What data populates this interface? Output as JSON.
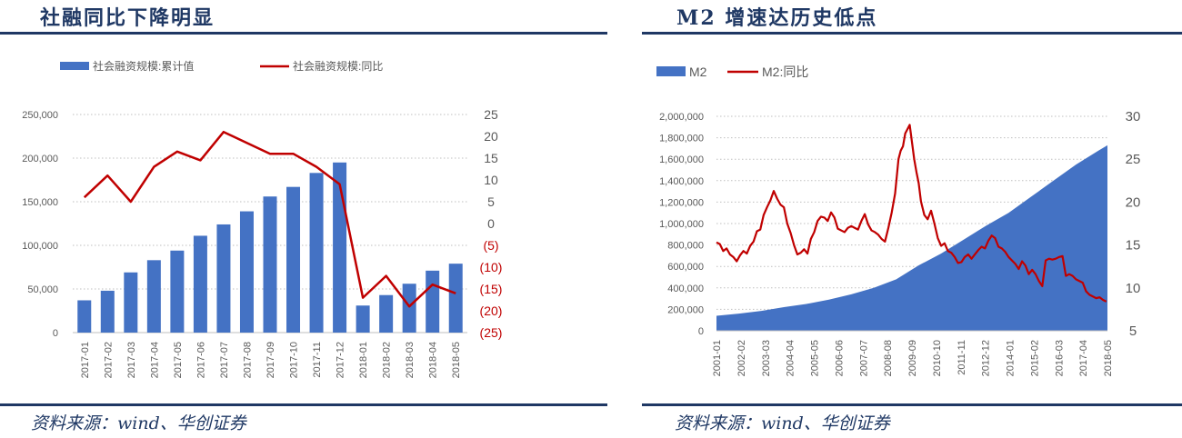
{
  "left": {
    "title": "社融同比下降明显",
    "source": "资料来源：wind、华创证券",
    "chart_data": {
      "type": "bar",
      "categories": [
        "2017-01",
        "2017-02",
        "2017-03",
        "2017-04",
        "2017-05",
        "2017-06",
        "2017-07",
        "2017-08",
        "2017-09",
        "2017-10",
        "2017-11",
        "2017-12",
        "2018-01",
        "2018-02",
        "2018-03",
        "2018-04",
        "2018-05"
      ],
      "series": [
        {
          "name": "社会融资规模:累计值",
          "type": "bar",
          "axis": "left",
          "color": "#4472c4",
          "values": [
            37000,
            48000,
            69000,
            83000,
            94000,
            111000,
            124000,
            139000,
            156000,
            167000,
            183000,
            195000,
            31000,
            43000,
            56000,
            71000,
            79000
          ]
        },
        {
          "name": "社会融资规模:同比",
          "type": "line",
          "axis": "right",
          "color": "#c00000",
          "values": [
            6,
            11,
            5,
            13,
            16.5,
            14.5,
            21,
            18.5,
            16,
            16,
            13,
            9,
            -17,
            -12,
            -19,
            -14,
            -16
          ]
        }
      ],
      "y_left": {
        "min": 0,
        "max": 250000,
        "ticks": [
          "250,000",
          "200,000",
          "150,000",
          "100,000",
          "50,000",
          "0"
        ]
      },
      "y_right": {
        "min": -25,
        "max": 25,
        "ticks": [
          "25",
          "20",
          "15",
          "10",
          "5",
          "0",
          "(5)",
          "(10)",
          "(15)",
          "(20)",
          "(25)"
        ]
      },
      "grid": true,
      "legend": "top-left"
    }
  },
  "right": {
    "title": "M2 增速达历史低点",
    "source": "资料来源：wind、华创证券",
    "chart_data": {
      "type": "area",
      "categories": [
        "2001-01",
        "2002-02",
        "2003-03",
        "2004-04",
        "2005-05",
        "2006-06",
        "2007-07",
        "2008-08",
        "2009-09",
        "2010-10",
        "2011-11",
        "2012-12",
        "2014-01",
        "2015-02",
        "2016-03",
        "2017-04",
        "2018-05"
      ],
      "series": [
        {
          "name": "M2",
          "type": "area",
          "axis": "left",
          "color": "#4472c4",
          "x": [
            2001.0,
            2002.0,
            2003.0,
            2004.0,
            2005.0,
            2006.0,
            2007.0,
            2008.0,
            2009.0,
            2010.0,
            2011.0,
            2012.0,
            2013.0,
            2014.0,
            2015.0,
            2016.0,
            2017.0,
            2018.0,
            2018.4
          ],
          "values": [
            140000,
            160000,
            185000,
            220000,
            250000,
            290000,
            340000,
            400000,
            480000,
            610000,
            720000,
            850000,
            980000,
            1100000,
            1250000,
            1400000,
            1550000,
            1680000,
            1730000
          ]
        },
        {
          "name": "M2:同比",
          "type": "line",
          "axis": "right",
          "color": "#c00000",
          "x": [
            2001.0,
            2001.15,
            2001.3,
            2001.45,
            2001.6,
            2001.75,
            2001.9,
            2002.05,
            2002.2,
            2002.35,
            2002.5,
            2002.65,
            2002.8,
            2002.95,
            2003.1,
            2003.25,
            2003.4,
            2003.55,
            2003.7,
            2003.85,
            2004.0,
            2004.15,
            2004.3,
            2004.45,
            2004.6,
            2004.75,
            2004.9,
            2005.05,
            2005.2,
            2005.35,
            2005.5,
            2005.65,
            2005.8,
            2005.95,
            2006.1,
            2006.25,
            2006.4,
            2006.55,
            2006.7,
            2006.85,
            2007.0,
            2007.15,
            2007.3,
            2007.45,
            2007.6,
            2007.75,
            2007.9,
            2008.05,
            2008.2,
            2008.35,
            2008.5,
            2008.65,
            2008.8,
            2008.95,
            2009.1,
            2009.2,
            2009.3,
            2009.4,
            2009.5,
            2009.6,
            2009.7,
            2009.8,
            2009.9,
            2010.0,
            2010.1,
            2010.25,
            2010.4,
            2010.55,
            2010.7,
            2010.85,
            2011.0,
            2011.15,
            2011.3,
            2011.45,
            2011.6,
            2011.75,
            2011.9,
            2012.05,
            2012.2,
            2012.35,
            2012.5,
            2012.65,
            2012.8,
            2012.95,
            2013.1,
            2013.25,
            2013.4,
            2013.55,
            2013.7,
            2013.85,
            2014.0,
            2014.15,
            2014.3,
            2014.45,
            2014.6,
            2014.75,
            2014.9,
            2015.05,
            2015.2,
            2015.35,
            2015.5,
            2015.65,
            2015.8,
            2015.95,
            2016.1,
            2016.25,
            2016.4,
            2016.55,
            2016.7,
            2016.85,
            2017.0,
            2017.15,
            2017.3,
            2017.45,
            2017.6,
            2017.75,
            2017.9,
            2018.05,
            2018.2,
            2018.35
          ],
          "values": [
            15.3,
            15.1,
            14.3,
            14.6,
            13.9,
            13.6,
            13.1,
            13.8,
            14.3,
            14.0,
            14.9,
            15.4,
            16.6,
            16.8,
            18.5,
            19.4,
            20.2,
            21.3,
            20.4,
            19.7,
            19.4,
            17.5,
            16.4,
            15.0,
            13.9,
            14.1,
            14.5,
            14.0,
            15.7,
            16.5,
            17.8,
            18.3,
            18.2,
            17.8,
            18.8,
            18.2,
            16.9,
            16.7,
            16.5,
            17.0,
            17.2,
            17.0,
            16.8,
            17.8,
            18.6,
            17.4,
            16.7,
            16.5,
            16.2,
            15.7,
            15.4,
            17.0,
            18.8,
            21.0,
            25.0,
            26.0,
            26.5,
            28.0,
            28.5,
            29.0,
            27.0,
            25.0,
            23.5,
            22.2,
            20.1,
            18.5,
            18.0,
            19.0,
            17.5,
            15.8,
            14.9,
            15.2,
            14.3,
            14.1,
            13.6,
            12.9,
            13.0,
            13.6,
            13.9,
            13.4,
            13.9,
            14.4,
            14.8,
            14.6,
            15.5,
            16.1,
            15.8,
            14.8,
            14.6,
            14.2,
            13.6,
            13.2,
            12.8,
            12.2,
            13.1,
            12.6,
            11.6,
            12.1,
            11.6,
            10.8,
            10.2,
            13.2,
            13.4,
            13.3,
            13.4,
            13.6,
            13.7,
            11.4,
            11.6,
            11.4,
            11.0,
            10.8,
            10.6,
            9.6,
            9.2,
            9.0,
            8.8,
            8.9,
            8.6,
            8.4
          ],
          "x_end": 2018.4
        }
      ],
      "y_left": {
        "min": 0,
        "max": 2000000,
        "ticks": [
          "2,000,000",
          "1,800,000",
          "1,600,000",
          "1,400,000",
          "1,200,000",
          "1,000,000",
          "800,000",
          "600,000",
          "400,000",
          "200,000",
          "0"
        ]
      },
      "y_right": {
        "min": 5,
        "max": 30,
        "ticks": [
          "30",
          "25",
          "20",
          "15",
          "10",
          "5"
        ]
      },
      "grid": true,
      "legend": "top-left"
    }
  }
}
